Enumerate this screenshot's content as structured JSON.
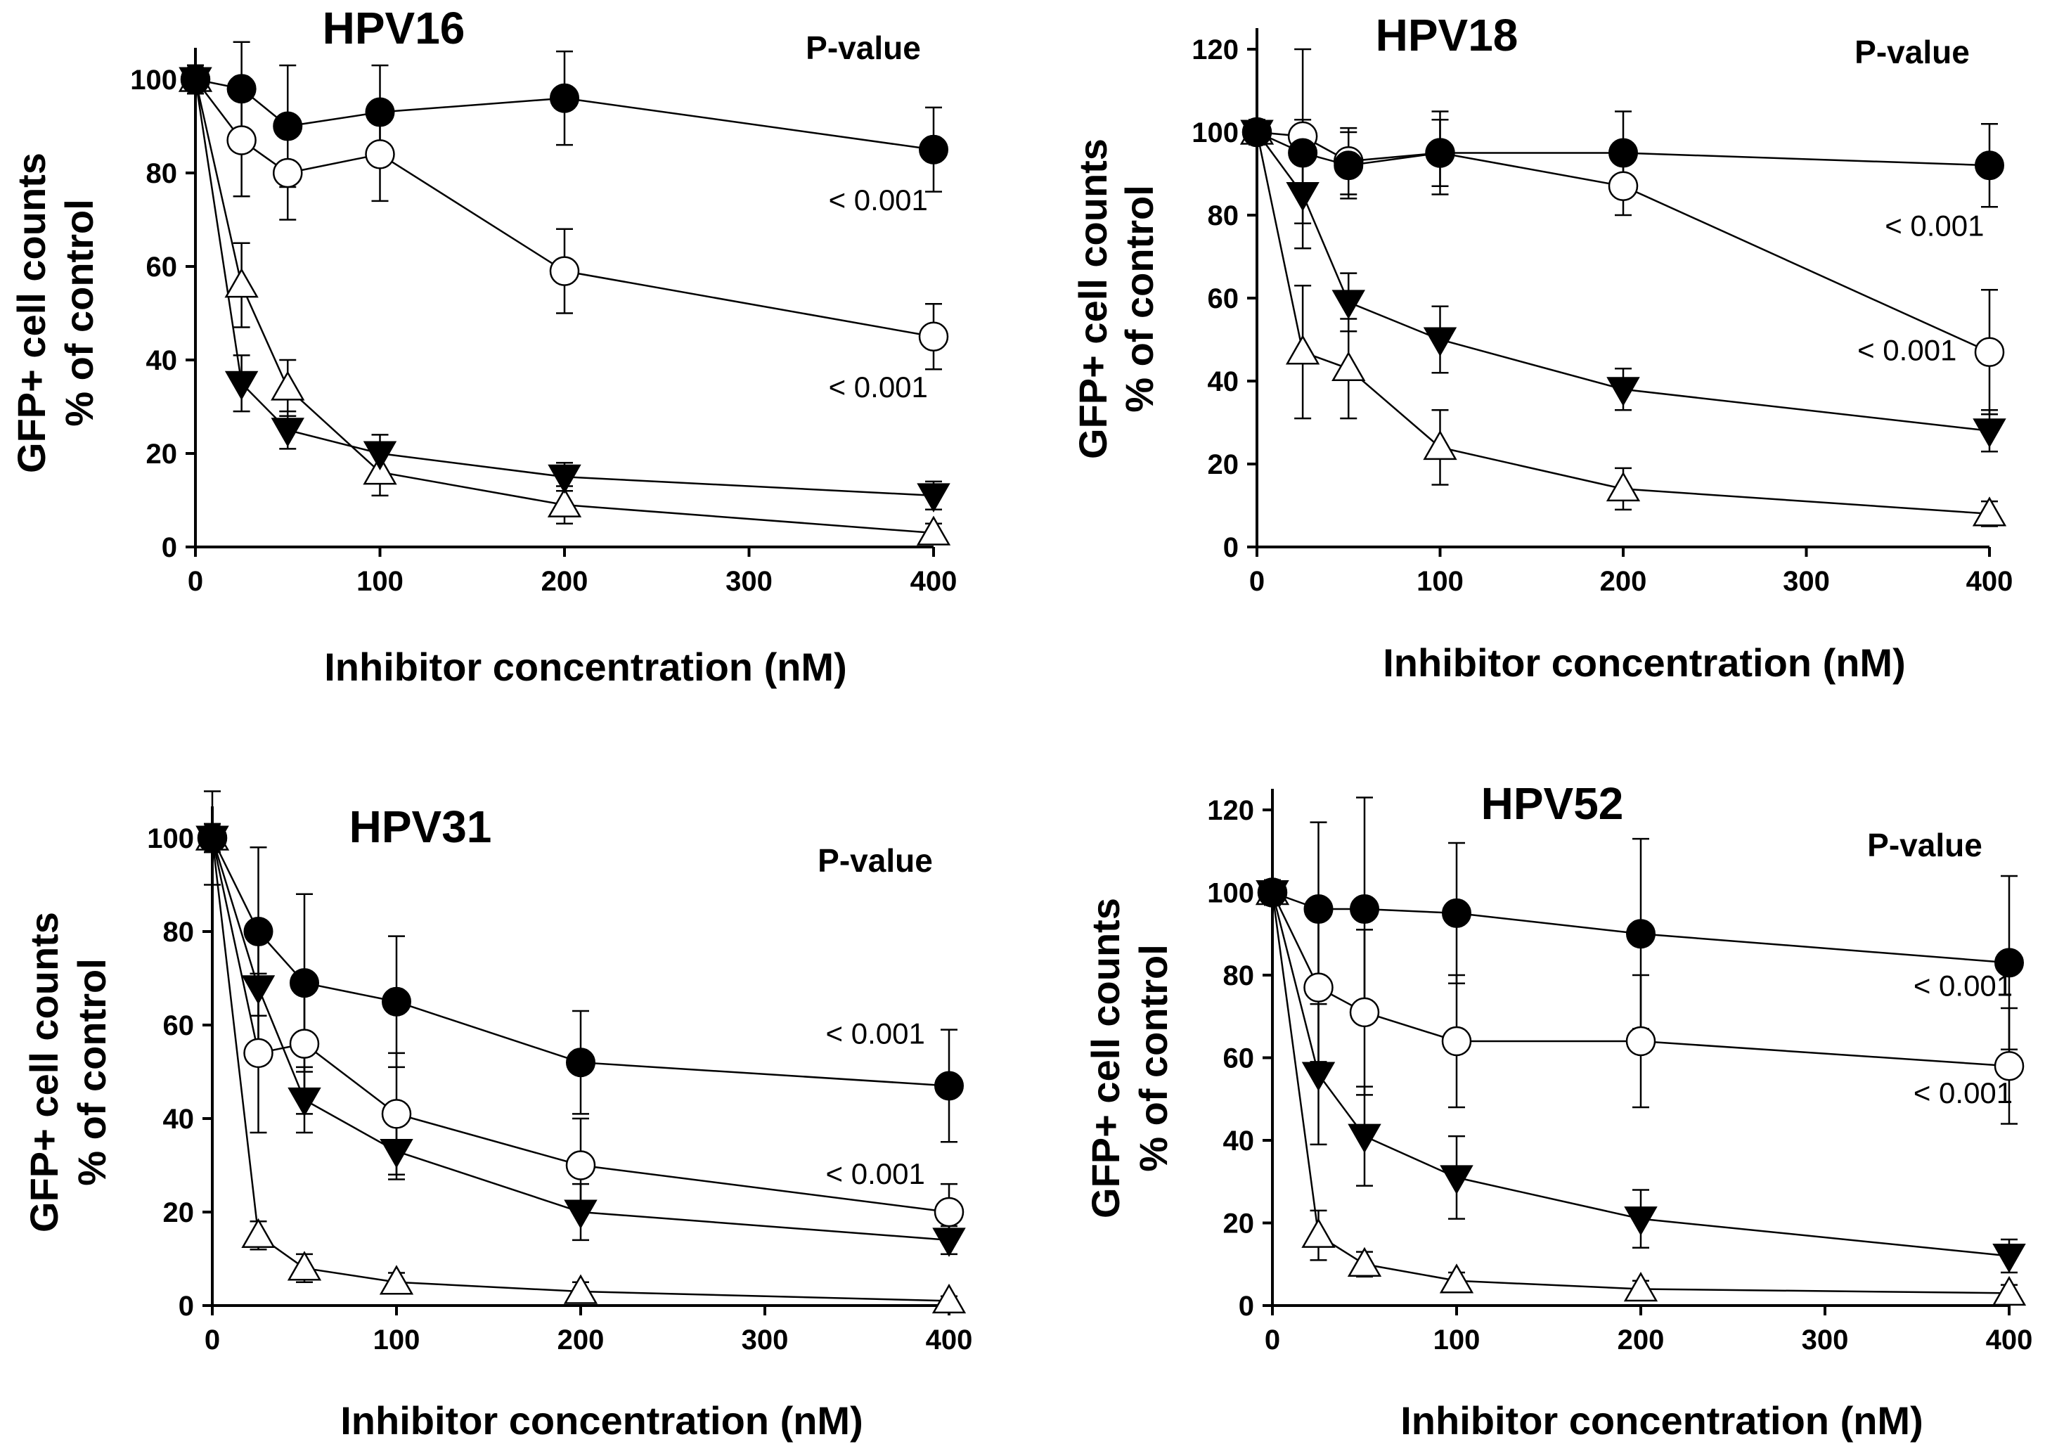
{
  "chart_data": [
    {
      "type": "line",
      "title": "HPV16",
      "xlabel": "Inhibitor concentration (nM)",
      "ylabel_line1": "GFP+ cell counts",
      "ylabel_line2": "% of control",
      "xlim": [
        0,
        400
      ],
      "ylim": [
        0,
        100
      ],
      "xticks": [
        0,
        100,
        200,
        300,
        400
      ],
      "yticks": [
        0,
        20,
        40,
        60,
        80,
        100
      ],
      "pvalue_header": "P-value",
      "x": [
        0,
        25,
        50,
        100,
        200,
        400
      ],
      "series": [
        {
          "name": "filled-circle",
          "marker": "filled-circle",
          "values": [
            100,
            98,
            90,
            93,
            96,
            85
          ],
          "errors": [
            3,
            10,
            13,
            10,
            10,
            9
          ]
        },
        {
          "name": "open-circle",
          "marker": "open-circle",
          "values": [
            100,
            87,
            80,
            84,
            59,
            45
          ],
          "errors": [
            3,
            12,
            10,
            10,
            9,
            7
          ]
        },
        {
          "name": "filled-triangle-down",
          "marker": "filled-triangle-down",
          "values": [
            100,
            35,
            25,
            20,
            15,
            11
          ],
          "errors": [
            3,
            6,
            4,
            4,
            3,
            3
          ]
        },
        {
          "name": "open-triangle-up",
          "marker": "open-triangle-up",
          "values": [
            100,
            56,
            34,
            16,
            9,
            3
          ],
          "errors": [
            3,
            9,
            6,
            5,
            4,
            2
          ]
        }
      ],
      "annotations": [
        {
          "text": "< 0.001",
          "x": 370,
          "y": 72
        },
        {
          "text": "< 0.001",
          "x": 370,
          "y": 32
        }
      ]
    },
    {
      "type": "line",
      "title": "HPV18",
      "xlabel": "Inhibitor concentration (nM)",
      "ylabel_line1": "GFP+ cell counts",
      "ylabel_line2": "% of control",
      "xlim": [
        0,
        400
      ],
      "ylim": [
        0,
        120
      ],
      "xticks": [
        0,
        100,
        200,
        300,
        400
      ],
      "yticks": [
        0,
        20,
        40,
        60,
        80,
        100,
        120
      ],
      "pvalue_header": "P-value",
      "x": [
        0,
        25,
        50,
        100,
        200,
        400
      ],
      "series": [
        {
          "name": "filled-circle",
          "marker": "filled-circle",
          "values": [
            100,
            95,
            92,
            95,
            95,
            92
          ],
          "errors": [
            3,
            8,
            8,
            8,
            10,
            10
          ]
        },
        {
          "name": "open-circle",
          "marker": "open-circle",
          "values": [
            100,
            99,
            93,
            95,
            87,
            47
          ],
          "errors": [
            3,
            21,
            8,
            10,
            7,
            15
          ]
        },
        {
          "name": "filled-triangle-down",
          "marker": "filled-triangle-down",
          "values": [
            100,
            85,
            59,
            50,
            38,
            28
          ],
          "errors": [
            3,
            13,
            7,
            8,
            5,
            5
          ]
        },
        {
          "name": "open-triangle-up",
          "marker": "open-triangle-up",
          "values": [
            100,
            47,
            43,
            24,
            14,
            8
          ],
          "errors": [
            3,
            16,
            12,
            9,
            5,
            3
          ]
        }
      ],
      "annotations": [
        {
          "text": "< 0.001",
          "x": 370,
          "y": 75
        },
        {
          "text": "< 0.001",
          "x": 355,
          "y": 45
        }
      ]
    },
    {
      "type": "line",
      "title": "HPV31",
      "xlabel": "Inhibitor concentration (nM)",
      "ylabel_line1": "GFP+ cell counts",
      "ylabel_line2": "% of control",
      "xlim": [
        0,
        400
      ],
      "ylim": [
        0,
        100
      ],
      "xticks": [
        0,
        100,
        200,
        300,
        400
      ],
      "yticks": [
        0,
        20,
        40,
        60,
        80,
        100
      ],
      "pvalue_header": "P-value",
      "x": [
        0,
        25,
        50,
        100,
        200,
        400
      ],
      "series": [
        {
          "name": "filled-circle",
          "marker": "filled-circle",
          "values": [
            100,
            80,
            69,
            65,
            52,
            47
          ],
          "errors": [
            10,
            18,
            19,
            14,
            11,
            12
          ]
        },
        {
          "name": "open-circle",
          "marker": "open-circle",
          "values": [
            100,
            54,
            56,
            41,
            30,
            20
          ],
          "errors": [
            3,
            17,
            15,
            13,
            10,
            6
          ]
        },
        {
          "name": "filled-triangle-down",
          "marker": "filled-triangle-down",
          "values": [
            100,
            68,
            44,
            33,
            20,
            14
          ],
          "errors": [
            3,
            12,
            7,
            6,
            6,
            3
          ]
        },
        {
          "name": "open-triangle-up",
          "marker": "open-triangle-up",
          "values": [
            100,
            15,
            8,
            5,
            3,
            1
          ],
          "errors": [
            3,
            3,
            3,
            2,
            2,
            1
          ]
        }
      ],
      "annotations": [
        {
          "text": "< 0.001",
          "x": 360,
          "y": 56
        },
        {
          "text": "< 0.001",
          "x": 360,
          "y": 26
        }
      ]
    },
    {
      "type": "line",
      "title": "HPV52",
      "xlabel": "Inhibitor concentration (nM)",
      "ylabel_line1": "GFP+ cell counts",
      "ylabel_line2": "% of control",
      "xlim": [
        0,
        400
      ],
      "ylim": [
        0,
        120
      ],
      "xticks": [
        0,
        100,
        200,
        300,
        400
      ],
      "yticks": [
        0,
        20,
        40,
        60,
        80,
        100,
        120
      ],
      "pvalue_header": "P-value",
      "x": [
        0,
        25,
        50,
        100,
        200,
        400
      ],
      "series": [
        {
          "name": "filled-circle",
          "marker": "filled-circle",
          "values": [
            100,
            96,
            96,
            95,
            90,
            83
          ],
          "errors": [
            3,
            21,
            27,
            17,
            23,
            21
          ]
        },
        {
          "name": "open-circle",
          "marker": "open-circle",
          "values": [
            100,
            77,
            71,
            64,
            64,
            58
          ],
          "errors": [
            3,
            18,
            20,
            16,
            16,
            14
          ]
        },
        {
          "name": "filled-triangle-down",
          "marker": "filled-triangle-down",
          "values": [
            100,
            56,
            41,
            31,
            21,
            12
          ],
          "errors": [
            3,
            17,
            12,
            10,
            7,
            4
          ]
        },
        {
          "name": "open-triangle-up",
          "marker": "open-triangle-up",
          "values": [
            100,
            17,
            10,
            6,
            4,
            3
          ],
          "errors": [
            3,
            6,
            3,
            2,
            2,
            2
          ]
        }
      ],
      "annotations": [
        {
          "text": "< 0.001",
          "x": 375,
          "y": 75
        },
        {
          "text": "< 0.001",
          "x": 375,
          "y": 49
        }
      ]
    }
  ]
}
